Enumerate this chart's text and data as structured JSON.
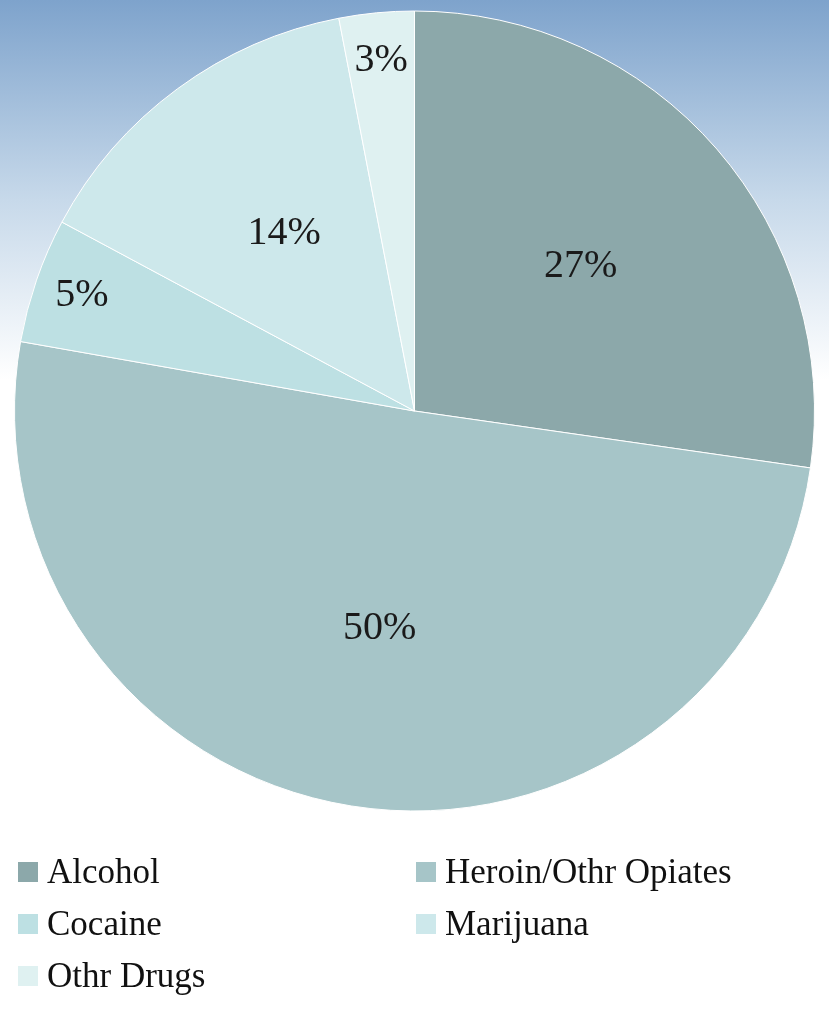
{
  "chart_data": {
    "type": "pie",
    "categories": [
      "Alcohol",
      "Heroin/Othr Opiates",
      "Cocaine",
      "Marijuana",
      "Othr Drugs"
    ],
    "values": [
      27,
      50,
      5,
      14,
      3
    ],
    "colors": [
      "#8ca8aa",
      "#a6c5c8",
      "#bde0e3",
      "#cde8eb",
      "#dff1f1"
    ],
    "value_labels": [
      "27%",
      "50%",
      "5%",
      "14%",
      "3%"
    ],
    "legend": "bottom"
  }
}
